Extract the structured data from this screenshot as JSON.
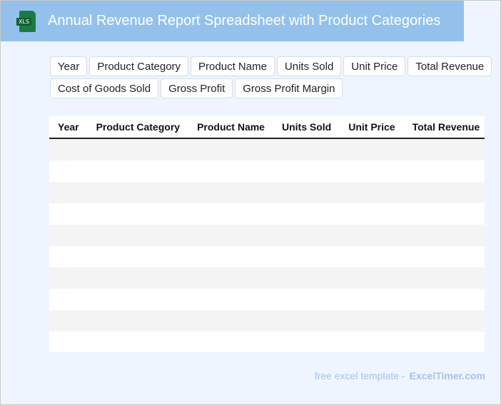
{
  "title": "Annual Revenue Report Spreadsheet with Product Categories",
  "icon": {
    "name": "xls-file-icon",
    "label": "XLS",
    "color": "#1d7a43"
  },
  "columns": [
    "Year",
    "Product Category",
    "Product Name",
    "Units Sold",
    "Unit Price",
    "Total Revenue",
    "Cost of Goods Sold",
    "Gross Profit",
    "Gross Profit Margin"
  ],
  "row_count": 10,
  "footer": {
    "text": "free excel template -",
    "brand": "ExcelTimer.com"
  },
  "colors": {
    "header_bar": "#93c1ec",
    "background": "#eef5fe",
    "stripe": "#f4f4f4"
  }
}
